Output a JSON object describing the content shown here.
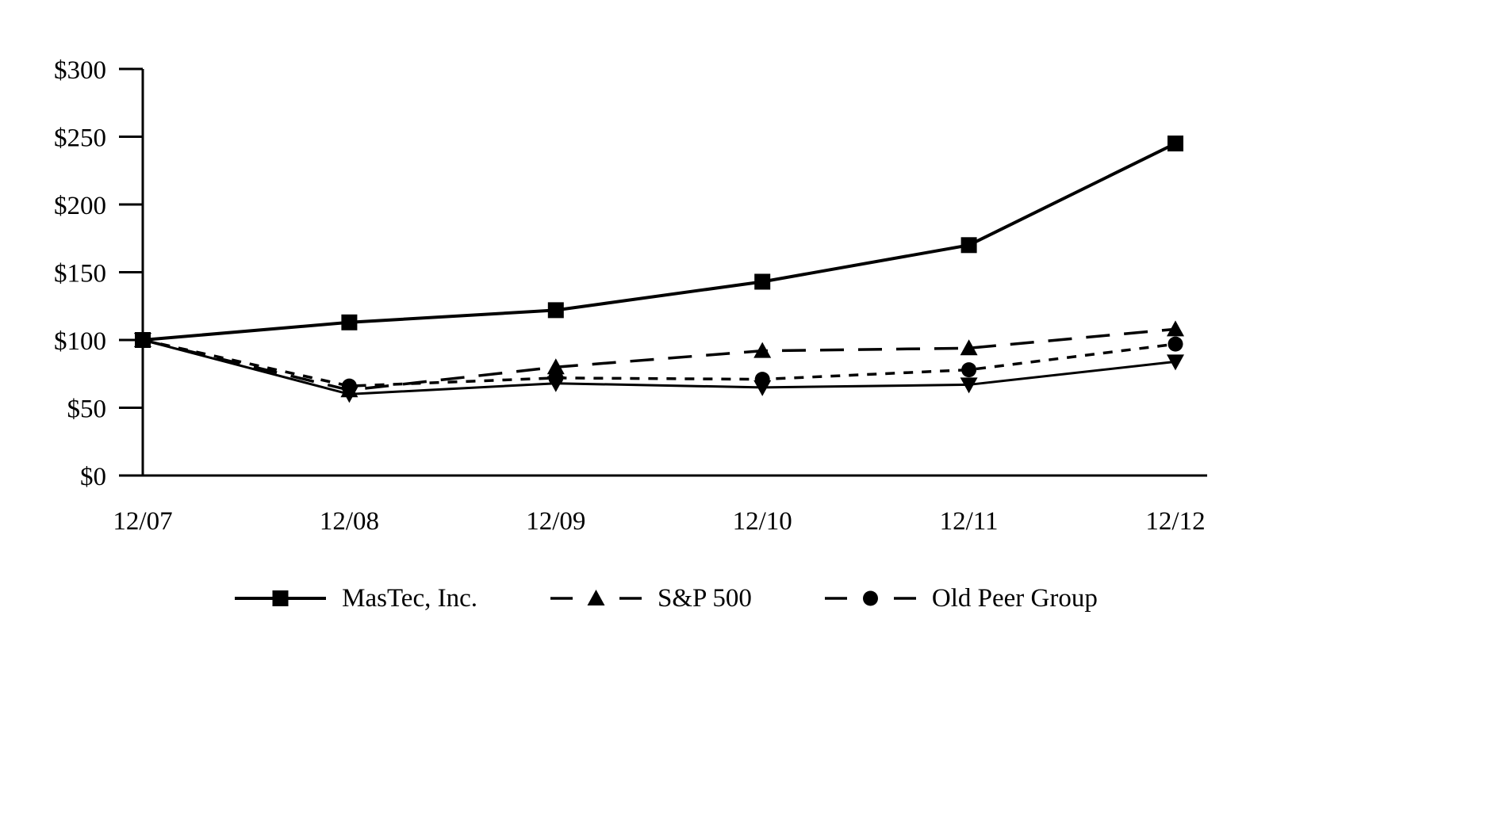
{
  "chart_data": {
    "type": "line",
    "x_categories": [
      "12/07",
      "12/08",
      "12/09",
      "12/10",
      "12/11",
      "12/12"
    ],
    "y_ticks": [
      "$300",
      "$250",
      "$200",
      "$150",
      "$100",
      "$50",
      "$0"
    ],
    "ylim": [
      0,
      300
    ],
    "grid": false,
    "legend_position": "bottom",
    "line_color": "#000000",
    "series": [
      {
        "name": "MasTec, Inc.",
        "marker": "square",
        "line": "solid",
        "in_legend": true,
        "values": [
          100,
          113,
          122,
          143,
          170,
          245
        ]
      },
      {
        "name": "S&P 500",
        "marker": "triangle-up",
        "line": "long-dash",
        "in_legend": true,
        "values": [
          100,
          63,
          80,
          92,
          94,
          108
        ]
      },
      {
        "name": "Old Peer Group",
        "marker": "circle",
        "line": "short-dash",
        "in_legend": true,
        "values": [
          100,
          66,
          72,
          71,
          78,
          97
        ]
      },
      {
        "name": "",
        "marker": "triangle-down",
        "line": "solid-thin",
        "in_legend": false,
        "values": [
          100,
          60,
          68,
          65,
          67,
          84
        ]
      }
    ]
  }
}
